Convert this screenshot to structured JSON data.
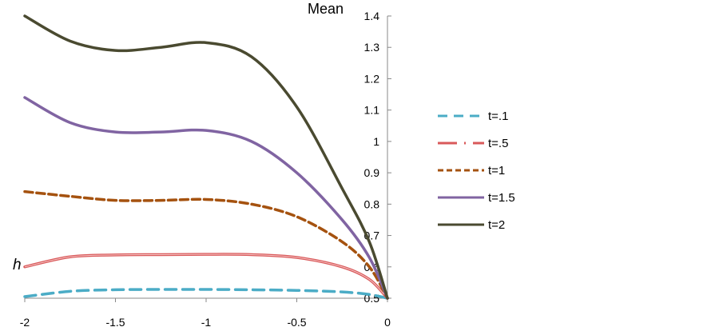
{
  "chart_data": {
    "type": "line",
    "title": "",
    "xlabel": "h",
    "ylabel": "Mean",
    "xlim": [
      -2,
      0
    ],
    "ylim": [
      0.5,
      1.4
    ],
    "xticks": [
      "-2",
      "-1.5",
      "-1",
      "-0.5",
      "0"
    ],
    "yticks": [
      "0.5",
      "0.6",
      "0.7",
      "0.8",
      "0.9",
      "1",
      "1.1",
      "1.2",
      "1.3",
      "1.4"
    ],
    "legend_position": "right",
    "x": [
      -2,
      -1.75,
      -1.5,
      -1.25,
      -1,
      -0.75,
      -0.5,
      -0.25,
      -0.1,
      0
    ],
    "series": [
      {
        "name": "t=.1",
        "color": "#4bacc6",
        "style": "dash",
        "values": [
          0.505,
          0.522,
          0.527,
          0.528,
          0.528,
          0.527,
          0.525,
          0.52,
          0.512,
          0.5
        ]
      },
      {
        "name": "t=.5",
        "color": "#d9595a",
        "style": "double",
        "values": [
          0.6,
          0.632,
          0.638,
          0.639,
          0.64,
          0.639,
          0.63,
          0.6,
          0.56,
          0.5
        ]
      },
      {
        "name": "t=1",
        "color": "#a5520f",
        "style": "shortdash",
        "values": [
          0.84,
          0.825,
          0.812,
          0.812,
          0.815,
          0.8,
          0.76,
          0.68,
          0.6,
          0.5
        ]
      },
      {
        "name": "t=1.5",
        "color": "#8064a2",
        "style": "solid",
        "values": [
          1.14,
          1.06,
          1.03,
          1.03,
          1.035,
          1.0,
          0.9,
          0.75,
          0.63,
          0.5
        ]
      },
      {
        "name": "t=2",
        "color": "#4a4a30",
        "style": "solid",
        "values": [
          1.4,
          1.32,
          1.29,
          1.3,
          1.315,
          1.27,
          1.11,
          0.85,
          0.68,
          0.5
        ]
      }
    ]
  }
}
